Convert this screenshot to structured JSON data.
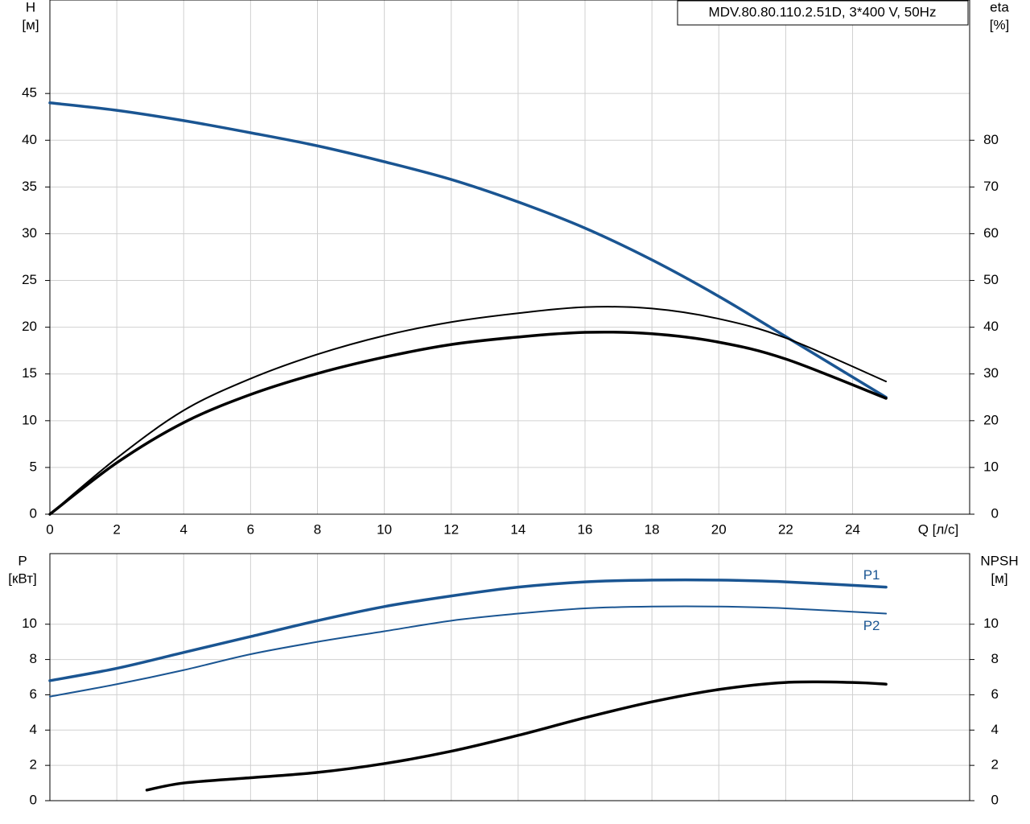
{
  "chart_data": [
    {
      "type": "line",
      "title": "MDV.80.80.110.2.51D, 3*400 V, 50Hz",
      "xlabel": "Q [л/с]",
      "ylabel": [
        "H",
        "[м]"
      ],
      "y2label": [
        "eta",
        "[%]"
      ],
      "xlim": [
        0,
        27.5
      ],
      "xticks": [
        0,
        2,
        4,
        6,
        8,
        10,
        12,
        14,
        16,
        18,
        20,
        22,
        24
      ],
      "ylim": [
        0,
        55
      ],
      "yticks": [
        0,
        5,
        10,
        15,
        20,
        25,
        30,
        35,
        40,
        45
      ],
      "y2lim": [
        0,
        110
      ],
      "y2ticks": [
        0,
        10,
        20,
        30,
        40,
        50,
        60,
        70,
        80
      ],
      "grid": true,
      "series": [
        {
          "color": "#1a5592",
          "line_width": 3.5,
          "x": [
            0,
            2,
            4,
            6,
            8,
            10,
            12,
            14,
            16,
            18,
            20,
            22,
            25
          ],
          "values": [
            44,
            43.2,
            42.1,
            40.8,
            39.4,
            37.7,
            35.8,
            33.4,
            30.6,
            27.2,
            23.3,
            19.0,
            12.5
          ]
        },
        {
          "color": "#000000",
          "line_width": 2,
          "axis": "y2",
          "x": [
            0,
            2,
            4,
            6,
            8,
            10,
            12,
            14,
            16,
            18,
            20,
            22,
            25
          ],
          "values": [
            0,
            12,
            22.2,
            29,
            34.2,
            38.2,
            41.1,
            43,
            44.3,
            44,
            41.8,
            37.7,
            28.4
          ]
        },
        {
          "color": "#000000",
          "line_width": 3.5,
          "axis": "y2",
          "x": [
            0,
            2,
            4,
            6,
            8,
            10,
            12,
            14,
            16,
            18,
            20,
            22,
            25
          ],
          "values": [
            0,
            11,
            19.6,
            25.6,
            30.1,
            33.6,
            36.3,
            37.9,
            38.9,
            38.6,
            36.8,
            33.2,
            24.8
          ]
        }
      ]
    },
    {
      "type": "line",
      "ylabel": [
        "P",
        "[кВт]"
      ],
      "y2label": [
        "NPSH",
        "[м]"
      ],
      "xlim": [
        0,
        27.5
      ],
      "ylim": [
        0,
        14
      ],
      "yticks": [
        0,
        2,
        4,
        6,
        8,
        10
      ],
      "y2lim": [
        0,
        14
      ],
      "y2ticks": [
        0,
        2,
        4,
        6,
        8,
        10
      ],
      "grid": true,
      "series": [
        {
          "name": "P1",
          "color": "#1a5592",
          "line_width": 3.5,
          "x": [
            0,
            2,
            4,
            6,
            8,
            10,
            12,
            14,
            16,
            18,
            20,
            22,
            25
          ],
          "values": [
            6.8,
            7.5,
            8.4,
            9.3,
            10.2,
            11.0,
            11.6,
            12.1,
            12.4,
            12.5,
            12.5,
            12.4,
            12.1
          ]
        },
        {
          "name": "P2",
          "color": "#1a5592",
          "line_width": 2,
          "x": [
            0,
            2,
            4,
            6,
            8,
            10,
            12,
            14,
            16,
            18,
            20,
            22,
            25
          ],
          "values": [
            5.9,
            6.6,
            7.4,
            8.3,
            9.0,
            9.6,
            10.2,
            10.6,
            10.9,
            11.0,
            11.0,
            10.9,
            10.6
          ]
        },
        {
          "color": "#000000",
          "line_width": 3.5,
          "axis": "y2",
          "x": [
            2.9,
            4,
            6,
            8,
            10,
            12,
            14,
            16,
            18,
            20,
            22,
            24,
            25
          ],
          "values": [
            0.6,
            1.0,
            1.3,
            1.6,
            2.1,
            2.8,
            3.7,
            4.7,
            5.6,
            6.3,
            6.7,
            6.7,
            6.6
          ]
        }
      ]
    }
  ]
}
